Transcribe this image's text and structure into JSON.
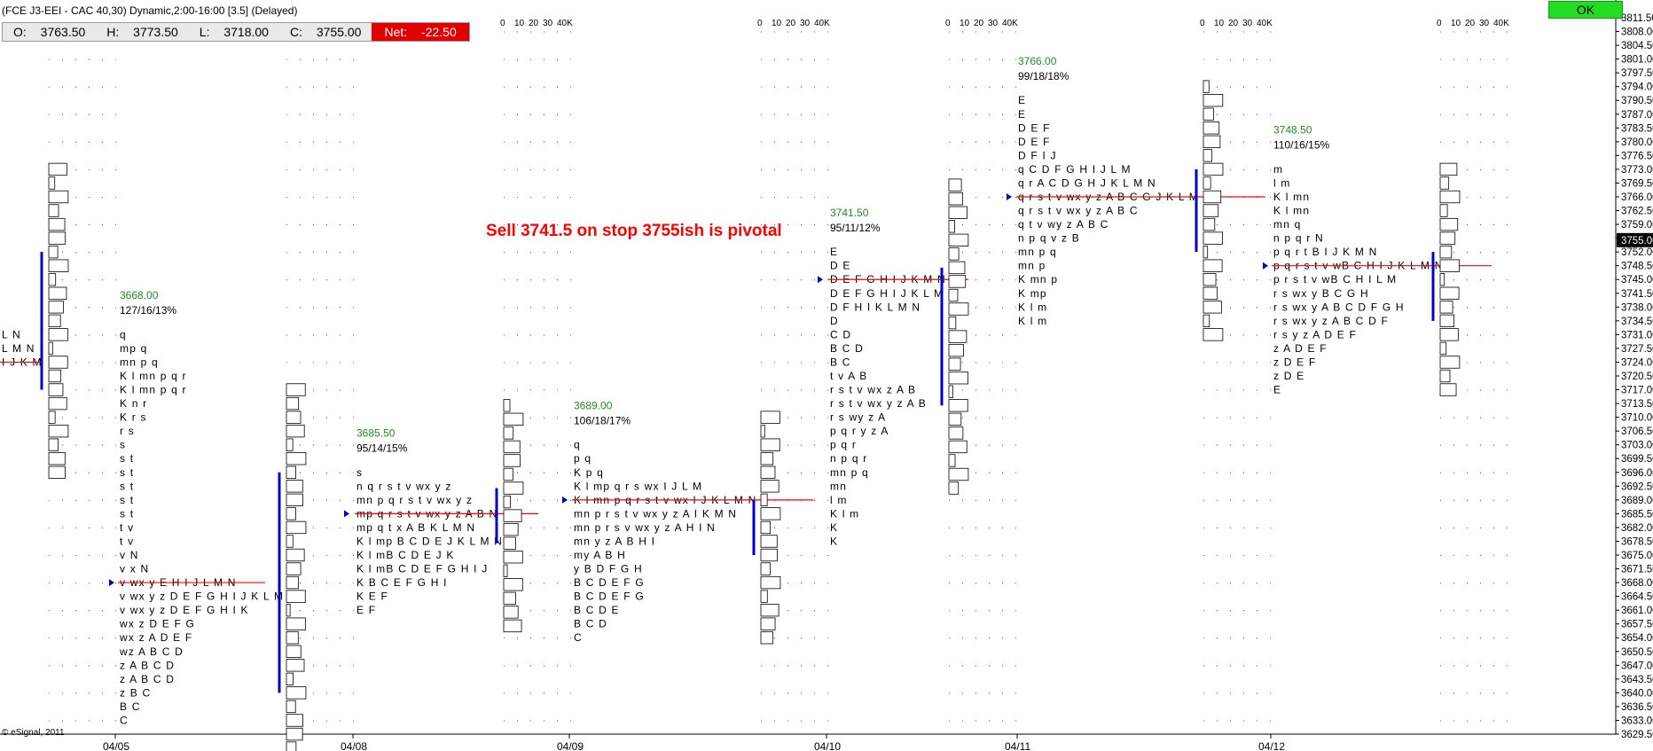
{
  "header": {
    "title": "(FCE J3-EEI - CAC 40,30) Dynamic,2:00-16:00 [3.5] (Delayed)",
    "open_label": "O:",
    "open": "3763.50",
    "high_label": "H:",
    "high": "3773.50",
    "low_label": "L:",
    "low": "3718.00",
    "close_label": "C:",
    "close": "3755.00",
    "net_label": "Net:",
    "net": "-22.50"
  },
  "ok_button": "OK",
  "annotation": "Sell 3741.5 on stop  3755ish is pivotal",
  "branding": "© eSignal, 2011",
  "colors": {
    "poc_line": "#ff0000",
    "value_area": "#0000cc",
    "poc_label": "#228b22",
    "annotation": "#ff0000",
    "net_bg": "#e00000",
    "ok_bg": "#22dd22",
    "current_price_bg": "#000000"
  },
  "chart_data": {
    "type": "table",
    "subtype": "market-profile",
    "y_axis": {
      "min": 3629.5,
      "max": 3811.5,
      "step": 3.5,
      "current_price": "3755.00"
    },
    "volume_scale_labels": [
      "0",
      "10",
      "20",
      "30",
      "40K"
    ],
    "x_dates": [
      "04/05",
      "04/08",
      "04/09",
      "04/10",
      "04/11",
      "04/12"
    ],
    "profiles": [
      {
        "date": "04/05",
        "header_price": "3668.00",
        "stats": "127/16/13%",
        "top_price": 3731.0,
        "rows": [
          "q",
          "mp q",
          "mn p q",
          "K l mn p q r",
          "K l mn p q r",
          "K n r",
          "K r s",
          "r s",
          "s",
          "s t",
          "s t",
          "s t",
          "s t",
          "s t",
          "t v",
          "t v",
          "v N",
          "v x N",
          "v wx y E H I J L M N",
          "v wx y z D E F G H I J K L M N",
          "v wx y z D E F G H I K",
          "wx z D E F G",
          "wx z A D E F",
          "wz A B C D",
          "z A B C D",
          "z A B C D",
          "z B C",
          "B C",
          "C"
        ],
        "poc_price": 3668.0
      },
      {
        "date": "04/08",
        "header_price": "3685.50",
        "stats": "95/14/15%",
        "top_price": 3696.0,
        "rows": [
          "s",
          "n q r s t v wx y z",
          "mn p q r s t v wx y z",
          "mp q r s t v wx y z A B N",
          "mp q t x A B K L M N",
          "K l mp B C D E J K L M N",
          "K l mB C D E J K",
          "K l mB C D E F G H I J",
          "K B C E F G H I",
          "K E F",
          "E F"
        ],
        "poc_price": 3685.5
      },
      {
        "date": "04/09",
        "header_price": "3689.00",
        "stats": "106/18/17%",
        "top_price": 3703.0,
        "rows": [
          "q",
          "p q",
          "K p q",
          "K l mp q r s wx I J L M",
          "K l mn p q r s t v wx I J K L M N",
          "mn p r s t v wx y z A I K M N",
          "mn p r s v wx y z A H I N",
          "mn y z A B H I",
          "my A B H",
          "y B D F G H",
          "B C D E F G",
          "B C D E F G",
          "B C D E",
          "B C D",
          "C"
        ],
        "poc_price": 3689.0
      },
      {
        "date": "04/10",
        "header_price": "3741.50",
        "stats": "95/11/12%",
        "top_price": 3752.0,
        "rows": [
          "E",
          "D E",
          "D E F G H I J K M N",
          "D E F G H I J K L M N",
          "D F H I K L M N",
          "D",
          "C D",
          "B C D",
          "B C",
          "t v A B",
          "r s t v wx z A B",
          "r s t v wx y z A B",
          "r s wy z A",
          "p q r y z A",
          "p q r",
          "n p q r",
          "mn p q",
          "mn",
          "l m",
          "K l m",
          "K",
          "K"
        ],
        "poc_price": 3745.0
      },
      {
        "date": "04/11",
        "header_price": "3766.00",
        "stats": "99/18/18%",
        "top_price": 3790.5,
        "rows": [
          "E",
          "E",
          "D E F",
          "D E F",
          "D F I J",
          "q C D F G H I J L M",
          "q r A C D G H J K L M N",
          "q r s t v wx y z A B C G J K L M N",
          "q r s t v wx y z A B C",
          "q t v wy z A B C",
          "n p q v z B",
          "mn p q",
          "mn p",
          "K mn p",
          "K mp",
          "K l m",
          "K l m"
        ],
        "poc_price": 3766.0
      },
      {
        "date": "04/12",
        "header_price": "3748.50",
        "stats": "110/16/15%",
        "top_price": 3773.0,
        "rows": [
          "m",
          "l m",
          "K l mn",
          "K l mn",
          "mn q",
          "n p q r N",
          "p q r t B I J K M N",
          "p q r s t v wB C H I J K L M N",
          "p r s t v wB C H I L M",
          "r s wx y B C G H",
          "r s wx y A B C D F G H",
          "r s wx y z A B C D F",
          "r s y z A D E F",
          "z A D E F",
          "z D E F",
          "z D E",
          "E"
        ],
        "poc_price": 3748.5
      }
    ]
  }
}
